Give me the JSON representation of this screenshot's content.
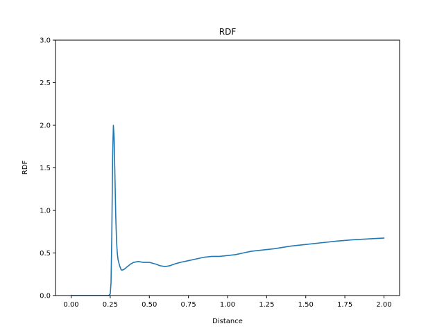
{
  "chart_data": {
    "type": "line",
    "title": "RDF",
    "xlabel": "Distance",
    "ylabel": "RDF",
    "xlim": [
      -0.1,
      2.1
    ],
    "ylim": [
      0.0,
      3.0
    ],
    "xticks": [
      0.0,
      0.25,
      0.5,
      0.75,
      1.0,
      1.25,
      1.5,
      1.75,
      2.0
    ],
    "xtick_labels": [
      "0.00",
      "0.25",
      "0.50",
      "0.75",
      "1.00",
      "1.25",
      "1.50",
      "1.75",
      "2.00"
    ],
    "yticks": [
      0.0,
      0.5,
      1.0,
      1.5,
      2.0,
      2.5,
      3.0
    ],
    "ytick_labels": [
      "0.0",
      "0.5",
      "1.0",
      "1.5",
      "2.0",
      "2.5",
      "3.0"
    ],
    "grid": false,
    "series": [
      {
        "color": "#1f77b4",
        "x": [
          0.0,
          0.1,
          0.2,
          0.24,
          0.25,
          0.255,
          0.26,
          0.265,
          0.27,
          0.275,
          0.28,
          0.285,
          0.29,
          0.295,
          0.3,
          0.31,
          0.32,
          0.33,
          0.34,
          0.36,
          0.38,
          0.4,
          0.43,
          0.46,
          0.5,
          0.54,
          0.57,
          0.6,
          0.63,
          0.66,
          0.7,
          0.75,
          0.8,
          0.85,
          0.9,
          0.95,
          1.0,
          1.05,
          1.1,
          1.15,
          1.2,
          1.25,
          1.3,
          1.4,
          1.5,
          1.6,
          1.7,
          1.8,
          1.9,
          2.0
        ],
        "y": [
          0.0,
          0.0,
          0.0,
          0.0,
          0.02,
          0.15,
          0.7,
          1.6,
          2.0,
          1.85,
          1.4,
          0.95,
          0.65,
          0.5,
          0.42,
          0.35,
          0.3,
          0.3,
          0.31,
          0.34,
          0.37,
          0.39,
          0.4,
          0.39,
          0.39,
          0.37,
          0.35,
          0.34,
          0.35,
          0.37,
          0.39,
          0.41,
          0.43,
          0.45,
          0.46,
          0.46,
          0.47,
          0.48,
          0.5,
          0.52,
          0.53,
          0.54,
          0.55,
          0.58,
          0.6,
          0.62,
          0.64,
          0.655,
          0.665,
          0.675
        ]
      }
    ]
  }
}
